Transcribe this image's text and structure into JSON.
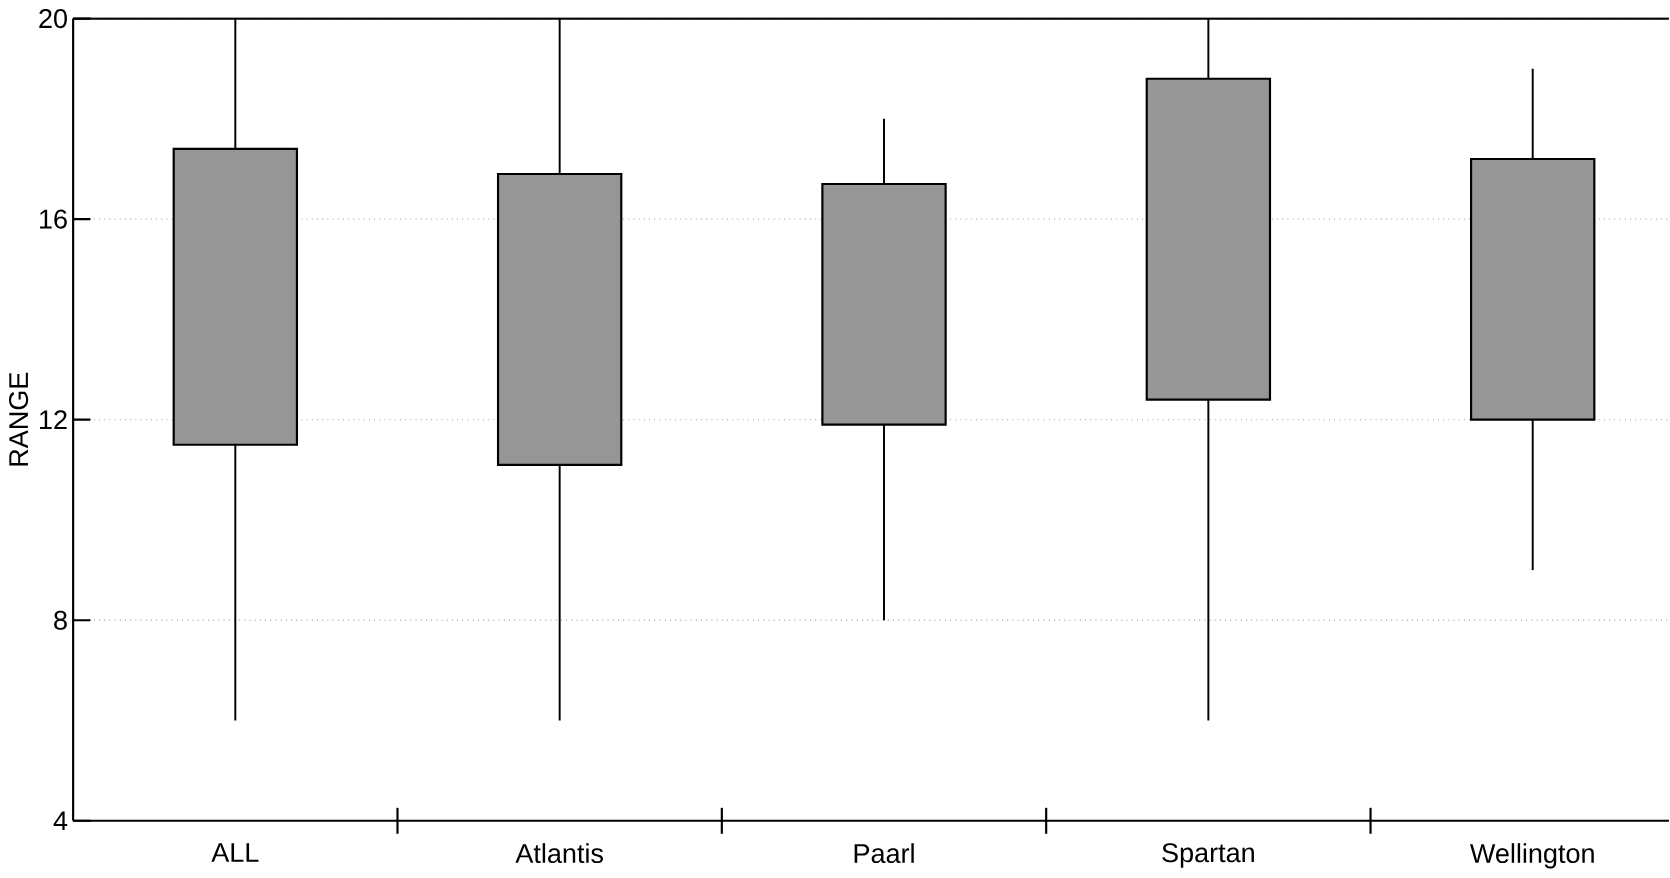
{
  "chart_data": {
    "type": "box",
    "ylabel": "RANGE",
    "categories": [
      "ALL",
      "Atlantis",
      "Paarl",
      "Spartan",
      "Wellington"
    ],
    "boxes": [
      {
        "low": 6,
        "q1": 11.5,
        "q3": 17.4,
        "high": 20
      },
      {
        "low": 6,
        "q1": 11.1,
        "q3": 16.9,
        "high": 20
      },
      {
        "low": 8,
        "q1": 11.9,
        "q3": 16.7,
        "high": 18
      },
      {
        "low": 6,
        "q1": 12.4,
        "q3": 18.8,
        "high": 20
      },
      {
        "low": 9,
        "q1": 12,
        "q3": 17.2,
        "high": 19
      }
    ],
    "color": "#969696",
    "ylim": [
      4,
      20
    ],
    "yticks": [
      4,
      8,
      12,
      16,
      20
    ],
    "grid": "y"
  }
}
